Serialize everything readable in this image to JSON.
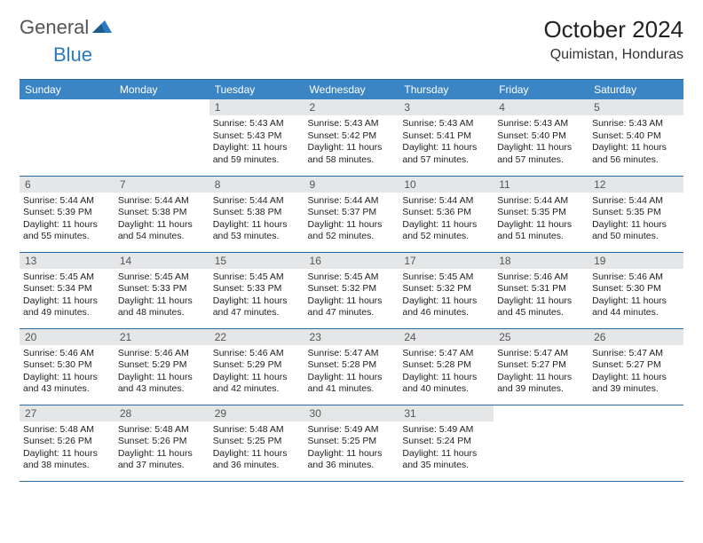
{
  "logo": {
    "text1": "General",
    "text2": "Blue"
  },
  "header": {
    "month_title": "October 2024",
    "location": "Quimistan, Honduras"
  },
  "colors": {
    "header_bg": "#3b85c4",
    "daynum_bg": "#e4e6e8",
    "row_border": "#2a6aa0",
    "logo_blue": "#2a7bbd"
  },
  "days_of_week": [
    "Sunday",
    "Monday",
    "Tuesday",
    "Wednesday",
    "Thursday",
    "Friday",
    "Saturday"
  ],
  "calendar": {
    "first_day_index": 2,
    "cells": [
      {
        "n": 1,
        "sr": "5:43 AM",
        "ss": "5:43 PM",
        "dl": "11 hours",
        "dm": "59 minutes."
      },
      {
        "n": 2,
        "sr": "5:43 AM",
        "ss": "5:42 PM",
        "dl": "11 hours",
        "dm": "58 minutes."
      },
      {
        "n": 3,
        "sr": "5:43 AM",
        "ss": "5:41 PM",
        "dl": "11 hours",
        "dm": "57 minutes."
      },
      {
        "n": 4,
        "sr": "5:43 AM",
        "ss": "5:40 PM",
        "dl": "11 hours",
        "dm": "57 minutes."
      },
      {
        "n": 5,
        "sr": "5:43 AM",
        "ss": "5:40 PM",
        "dl": "11 hours",
        "dm": "56 minutes."
      },
      {
        "n": 6,
        "sr": "5:44 AM",
        "ss": "5:39 PM",
        "dl": "11 hours",
        "dm": "55 minutes."
      },
      {
        "n": 7,
        "sr": "5:44 AM",
        "ss": "5:38 PM",
        "dl": "11 hours",
        "dm": "54 minutes."
      },
      {
        "n": 8,
        "sr": "5:44 AM",
        "ss": "5:38 PM",
        "dl": "11 hours",
        "dm": "53 minutes."
      },
      {
        "n": 9,
        "sr": "5:44 AM",
        "ss": "5:37 PM",
        "dl": "11 hours",
        "dm": "52 minutes."
      },
      {
        "n": 10,
        "sr": "5:44 AM",
        "ss": "5:36 PM",
        "dl": "11 hours",
        "dm": "52 minutes."
      },
      {
        "n": 11,
        "sr": "5:44 AM",
        "ss": "5:35 PM",
        "dl": "11 hours",
        "dm": "51 minutes."
      },
      {
        "n": 12,
        "sr": "5:44 AM",
        "ss": "5:35 PM",
        "dl": "11 hours",
        "dm": "50 minutes."
      },
      {
        "n": 13,
        "sr": "5:45 AM",
        "ss": "5:34 PM",
        "dl": "11 hours",
        "dm": "49 minutes."
      },
      {
        "n": 14,
        "sr": "5:45 AM",
        "ss": "5:33 PM",
        "dl": "11 hours",
        "dm": "48 minutes."
      },
      {
        "n": 15,
        "sr": "5:45 AM",
        "ss": "5:33 PM",
        "dl": "11 hours",
        "dm": "47 minutes."
      },
      {
        "n": 16,
        "sr": "5:45 AM",
        "ss": "5:32 PM",
        "dl": "11 hours",
        "dm": "47 minutes."
      },
      {
        "n": 17,
        "sr": "5:45 AM",
        "ss": "5:32 PM",
        "dl": "11 hours",
        "dm": "46 minutes."
      },
      {
        "n": 18,
        "sr": "5:46 AM",
        "ss": "5:31 PM",
        "dl": "11 hours",
        "dm": "45 minutes."
      },
      {
        "n": 19,
        "sr": "5:46 AM",
        "ss": "5:30 PM",
        "dl": "11 hours",
        "dm": "44 minutes."
      },
      {
        "n": 20,
        "sr": "5:46 AM",
        "ss": "5:30 PM",
        "dl": "11 hours",
        "dm": "43 minutes."
      },
      {
        "n": 21,
        "sr": "5:46 AM",
        "ss": "5:29 PM",
        "dl": "11 hours",
        "dm": "43 minutes."
      },
      {
        "n": 22,
        "sr": "5:46 AM",
        "ss": "5:29 PM",
        "dl": "11 hours",
        "dm": "42 minutes."
      },
      {
        "n": 23,
        "sr": "5:47 AM",
        "ss": "5:28 PM",
        "dl": "11 hours",
        "dm": "41 minutes."
      },
      {
        "n": 24,
        "sr": "5:47 AM",
        "ss": "5:28 PM",
        "dl": "11 hours",
        "dm": "40 minutes."
      },
      {
        "n": 25,
        "sr": "5:47 AM",
        "ss": "5:27 PM",
        "dl": "11 hours",
        "dm": "39 minutes."
      },
      {
        "n": 26,
        "sr": "5:47 AM",
        "ss": "5:27 PM",
        "dl": "11 hours",
        "dm": "39 minutes."
      },
      {
        "n": 27,
        "sr": "5:48 AM",
        "ss": "5:26 PM",
        "dl": "11 hours",
        "dm": "38 minutes."
      },
      {
        "n": 28,
        "sr": "5:48 AM",
        "ss": "5:26 PM",
        "dl": "11 hours",
        "dm": "37 minutes."
      },
      {
        "n": 29,
        "sr": "5:48 AM",
        "ss": "5:25 PM",
        "dl": "11 hours",
        "dm": "36 minutes."
      },
      {
        "n": 30,
        "sr": "5:49 AM",
        "ss": "5:25 PM",
        "dl": "11 hours",
        "dm": "36 minutes."
      },
      {
        "n": 31,
        "sr": "5:49 AM",
        "ss": "5:24 PM",
        "dl": "11 hours",
        "dm": "35 minutes."
      }
    ]
  },
  "labels": {
    "sunrise": "Sunrise: ",
    "sunset": "Sunset: ",
    "daylight": "Daylight: ",
    "and": "and "
  }
}
